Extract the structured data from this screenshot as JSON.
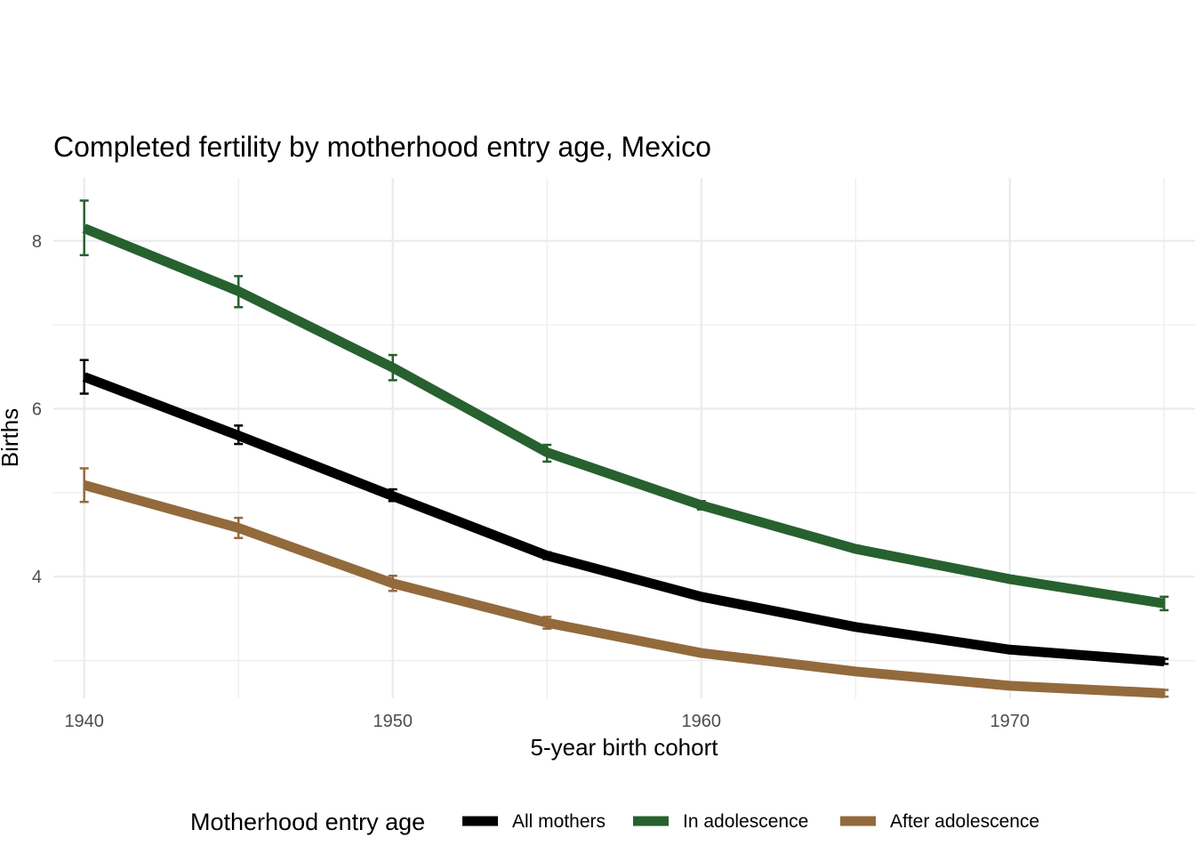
{
  "chart_data": {
    "type": "line",
    "title": "Completed fertility by motherhood entry age,  Mexico",
    "xlabel": "5-year birth cohort",
    "ylabel": "Births",
    "x": [
      1940,
      1945,
      1950,
      1955,
      1960,
      1965,
      1970,
      1975
    ],
    "xlim": [
      1939,
      1976
    ],
    "ylim": [
      2.55,
      8.75
    ],
    "x_ticks": [
      1940,
      1950,
      1960,
      1970
    ],
    "y_ticks": [
      4,
      6,
      8
    ],
    "grid": true,
    "legend_position": "bottom",
    "legend_title": "Motherhood entry age",
    "series": [
      {
        "name": "All mothers",
        "color": "#000000",
        "values": [
          6.38,
          5.68,
          4.96,
          4.25,
          3.76,
          3.4,
          3.13,
          2.99
        ],
        "err_low": [
          6.18,
          5.58,
          4.9,
          4.21,
          3.74,
          3.38,
          3.11,
          2.96
        ],
        "err_high": [
          6.58,
          5.8,
          5.04,
          4.29,
          3.78,
          3.42,
          3.15,
          3.02
        ]
      },
      {
        "name": "In adolescence",
        "color": "#27612f",
        "values": [
          8.15,
          7.4,
          6.49,
          5.48,
          4.85,
          4.33,
          3.97,
          3.68
        ],
        "err_low": [
          7.83,
          7.21,
          6.34,
          5.37,
          4.8,
          4.3,
          3.94,
          3.6
        ],
        "err_high": [
          8.48,
          7.58,
          6.64,
          5.57,
          4.9,
          4.37,
          4.01,
          3.76
        ]
      },
      {
        "name": "After adolescence",
        "color": "#936a3c",
        "values": [
          5.09,
          4.58,
          3.92,
          3.45,
          3.09,
          2.87,
          2.7,
          2.61
        ],
        "err_low": [
          4.89,
          4.46,
          3.83,
          3.38,
          3.07,
          2.85,
          2.68,
          2.57
        ],
        "err_high": [
          5.29,
          4.7,
          4.01,
          3.52,
          3.12,
          2.89,
          2.72,
          2.65
        ]
      }
    ]
  }
}
